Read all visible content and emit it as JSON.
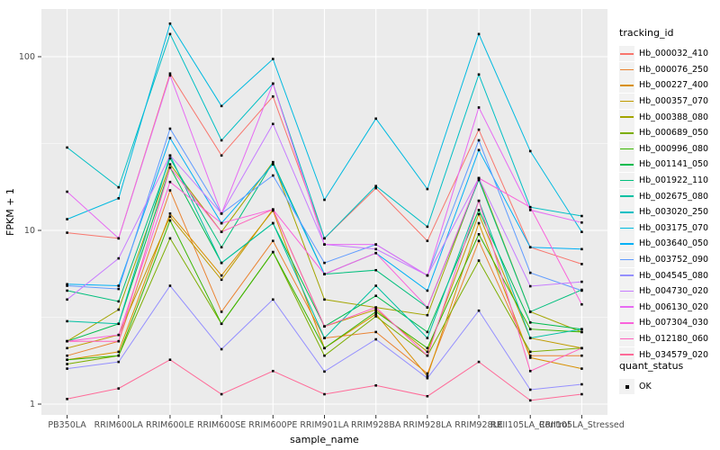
{
  "chart_data": {
    "type": "line",
    "title": "",
    "xlabel": "sample_name",
    "ylabel": "FPKM + 1",
    "y_scale": "log10",
    "y_ticks": [
      1,
      10,
      100
    ],
    "y_minor_ticks": [
      3.1623,
      31.623
    ],
    "ylim": [
      0.87,
      190
    ],
    "grid": true,
    "legend_position": "right",
    "categories": [
      "PB350LA",
      "RRIM600LA",
      "RRIM600LE",
      "RRIM600SE",
      "RRIM600PE",
      "RRIM901LA",
      "RRIM928BA",
      "RRIM928LA",
      "RRIM928LE",
      "RRII105LA_Control",
      "RRII105LA_Stressed"
    ],
    "legend_title": "tracking_id",
    "series": [
      {
        "name": "Hb_000032_410",
        "color": "#F8766D",
        "values": [
          9.7,
          9.0,
          80,
          27,
          59,
          9.0,
          17.5,
          8.7,
          38,
          8.0,
          6.4
        ]
      },
      {
        "name": "Hb_000076_250",
        "color": "#EA8331",
        "values": [
          1.9,
          2.3,
          17,
          3.4,
          8.7,
          2.4,
          2.6,
          1.5,
          8.7,
          1.9,
          1.9
        ]
      },
      {
        "name": "Hb_000227_400",
        "color": "#D89000",
        "values": [
          1.8,
          2.0,
          12.5,
          5.5,
          13,
          2.1,
          3.3,
          1.45,
          11,
          1.85,
          1.6
        ]
      },
      {
        "name": "Hb_000357_070",
        "color": "#C09B00",
        "values": [
          2.1,
          2.5,
          12,
          5.2,
          13.2,
          2.8,
          3.5,
          2.0,
          12.4,
          2.4,
          2.1
        ]
      },
      {
        "name": "Hb_000388_080",
        "color": "#A3A500",
        "values": [
          2.3,
          3.5,
          24,
          9.8,
          24.7,
          4.0,
          3.6,
          3.25,
          20,
          3.4,
          2.6
        ]
      },
      {
        "name": "Hb_000689_050",
        "color": "#7CAE00",
        "values": [
          1.7,
          1.9,
          9.0,
          2.9,
          7.5,
          1.9,
          3.2,
          1.9,
          6.7,
          2.0,
          2.1
        ]
      },
      {
        "name": "Hb_000996_080",
        "color": "#39B600",
        "values": [
          1.8,
          1.9,
          11.4,
          2.9,
          7.5,
          2.1,
          3.4,
          2.1,
          9.5,
          2.7,
          2.6
        ]
      },
      {
        "name": "Hb_001141_050",
        "color": "#00BB4E",
        "values": [
          2.3,
          2.9,
          23,
          6.5,
          11,
          2.8,
          4.2,
          2.6,
          13.1,
          2.95,
          2.7
        ]
      },
      {
        "name": "Hb_001922_110",
        "color": "#00BF7D",
        "values": [
          4.5,
          3.9,
          26,
          8.0,
          24.7,
          5.6,
          5.9,
          3.6,
          19.5,
          3.4,
          4.55
        ]
      },
      {
        "name": "Hb_002675_080",
        "color": "#00C1A3",
        "values": [
          3.0,
          2.9,
          27,
          6.5,
          11,
          2.4,
          4.8,
          2.4,
          14.8,
          2.4,
          2.7
        ]
      },
      {
        "name": "Hb_003020_250",
        "color": "#00BFC4",
        "values": [
          30,
          17.7,
          135,
          33,
          70,
          9.0,
          18,
          10.5,
          79,
          13.6,
          12.1
        ]
      },
      {
        "name": "Hb_003175_070",
        "color": "#00BAE0",
        "values": [
          11.6,
          15.3,
          155,
          52,
          97,
          15,
          44,
          17.3,
          135,
          28.6,
          9.8
        ]
      },
      {
        "name": "Hb_003640_050",
        "color": "#00B0F6",
        "values": [
          4.9,
          4.8,
          34,
          11,
          24,
          5.6,
          7.4,
          4.5,
          29,
          8.0,
          7.8
        ]
      },
      {
        "name": "Hb_003752_090",
        "color": "#619CFF",
        "values": [
          4.8,
          4.6,
          38.5,
          12.5,
          20.7,
          6.5,
          8.3,
          5.5,
          33,
          5.7,
          4.5
        ]
      },
      {
        "name": "Hb_004545_080",
        "color": "#9590FF",
        "values": [
          1.6,
          1.75,
          4.8,
          2.07,
          4.0,
          1.54,
          2.36,
          1.41,
          3.45,
          1.21,
          1.3
        ]
      },
      {
        "name": "Hb_004730_020",
        "color": "#C77CFF",
        "values": [
          4.0,
          6.9,
          27,
          12.5,
          41,
          8.3,
          7.8,
          5.5,
          20,
          4.77,
          5.06
        ]
      },
      {
        "name": "Hb_006130_020",
        "color": "#E76BF3",
        "values": [
          16.7,
          9.0,
          78,
          12.5,
          70,
          8.3,
          8.3,
          5.5,
          51,
          13.1,
          11.1
        ]
      },
      {
        "name": "Hb_007304_030",
        "color": "#FA62DB",
        "values": [
          2.3,
          2.5,
          19,
          11,
          13.2,
          5.6,
          7.4,
          3.6,
          20,
          13.6,
          3.75
        ]
      },
      {
        "name": "Hb_012180_060",
        "color": "#FF62BC",
        "values": [
          2.3,
          2.3,
          23,
          9.8,
          13.2,
          2.8,
          3.6,
          1.9,
          14.8,
          1.55,
          2.1
        ]
      },
      {
        "name": "Hb_034579_020",
        "color": "#FF6A98",
        "values": [
          1.07,
          1.23,
          1.8,
          1.14,
          1.55,
          1.14,
          1.28,
          1.11,
          1.75,
          1.05,
          1.14
        ]
      }
    ],
    "points": {
      "shape": "square",
      "color": "#000000",
      "size": 2.6
    },
    "legend2": {
      "title": "quant_status",
      "items": [
        {
          "label": "OK",
          "shape": "square",
          "color": "#000000"
        }
      ]
    },
    "theme": {
      "panel_bg": "#EBEBEB",
      "grid_color": "#FFFFFF",
      "axis_text_color": "#4D4D4D",
      "title_color": "#000000",
      "key_bg": "#F2F2F2",
      "background": "#FFFFFF"
    }
  }
}
